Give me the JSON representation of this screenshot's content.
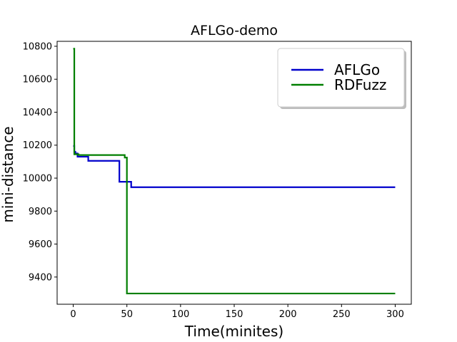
{
  "chart_data": {
    "type": "line",
    "title": "AFLGo-demo",
    "xlabel": "Time(minites)",
    "ylabel": "mini-distance",
    "xlim": [
      -15,
      315
    ],
    "ylim": [
      9235,
      10830
    ],
    "xticks": [
      0,
      50,
      100,
      150,
      200,
      250,
      300
    ],
    "yticks": [
      9400,
      9600,
      9800,
      10000,
      10200,
      10400,
      10600,
      10800
    ],
    "grid": false,
    "legend_position": "top-right",
    "series": [
      {
        "name": "AFLGo",
        "color": "#0000cc",
        "step": true,
        "x": [
          0,
          1,
          2,
          4,
          14,
          43,
          54,
          300
        ],
        "y": [
          10195,
          10160,
          10150,
          10130,
          10105,
          9978,
          9945,
          9945
        ]
      },
      {
        "name": "RDFuzz",
        "color": "#007f00",
        "step": true,
        "x": [
          0,
          1,
          5,
          48,
          50,
          300
        ],
        "y": [
          10785,
          10145,
          10140,
          10125,
          9300,
          9300
        ]
      }
    ]
  }
}
